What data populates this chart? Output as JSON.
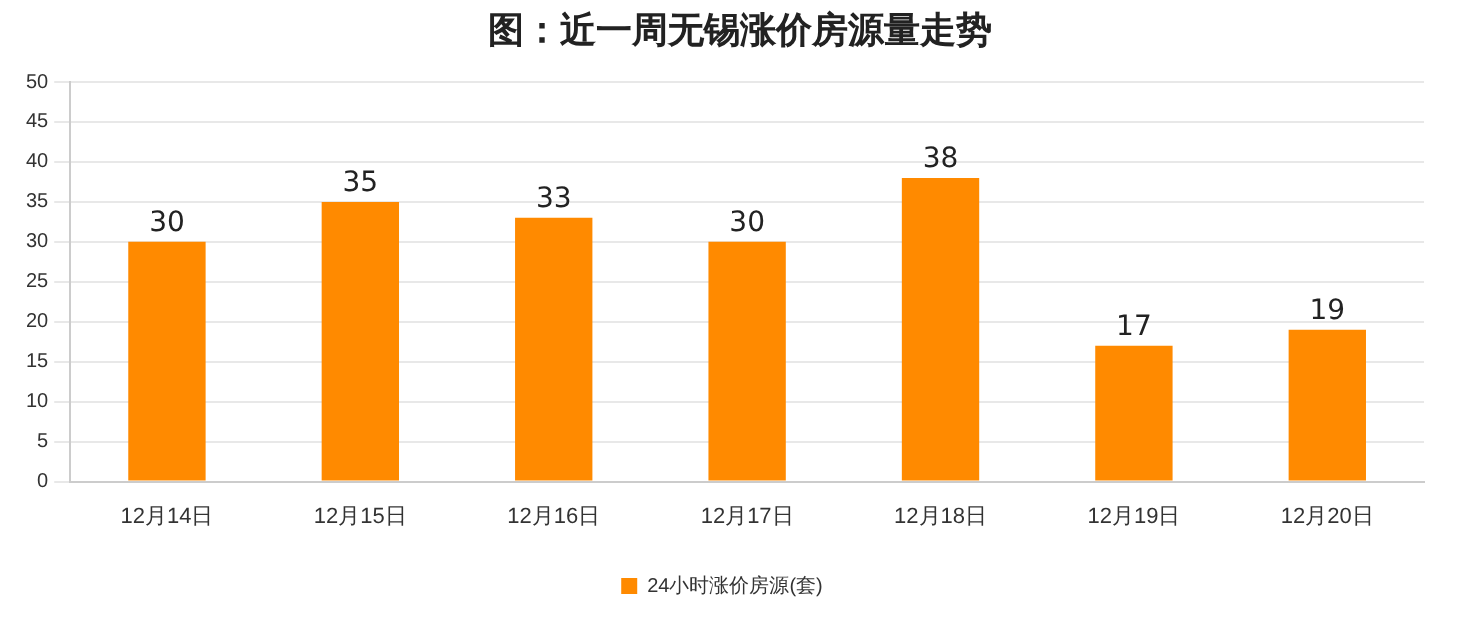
{
  "chart_data": {
    "type": "bar",
    "title": "图：近一周无锡涨价房源量走势",
    "categories": [
      "12月14日",
      "12月15日",
      "12月16日",
      "12月17日",
      "12月18日",
      "12月19日",
      "12月20日"
    ],
    "series": [
      {
        "name": "24小时涨价房源(套)",
        "color": "#ff8a00",
        "values": [
          30,
          35,
          33,
          30,
          38,
          17,
          19
        ]
      }
    ],
    "ylim": [
      0,
      50
    ],
    "yticks": [
      0,
      5,
      10,
      15,
      20,
      25,
      30,
      35,
      40,
      45,
      50
    ],
    "grid": "y",
    "legend": "bottom",
    "data_labels": true
  }
}
